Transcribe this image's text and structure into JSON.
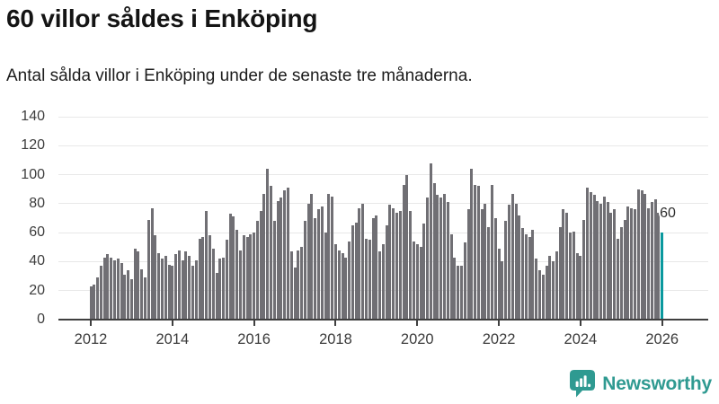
{
  "header": {
    "title": "60 villor såldes i Enköping",
    "subtitle": "Antal sålda villor i Enköping under de senaste tre månaderna."
  },
  "footer": {
    "brand_name": "Newsworthy",
    "brand_color": "#2f9a91",
    "brand_icon": "bar-chart-speech-bubble"
  },
  "chart_data": {
    "type": "bar",
    "title": "60 villor såldes i Enköping",
    "subtitle": "Antal sålda villor i Enköping under de senaste tre månaderna.",
    "x_unit": "month",
    "x_start": "2012-01",
    "x_end": "2026-01",
    "grid": true,
    "legend": "none",
    "ylim": [
      0,
      140
    ],
    "y_ticks": [
      0,
      20,
      40,
      60,
      80,
      100,
      120,
      140
    ],
    "x_tick_labels": [
      "2012",
      "2014",
      "2016",
      "2018",
      "2020",
      "2022",
      "2024",
      "2026"
    ],
    "bar_color": "#706f74",
    "highlight": {
      "index": 168,
      "value": 60,
      "label": "60",
      "color": "#0a999e"
    },
    "values": [
      23,
      24,
      29,
      37,
      43,
      45,
      43,
      41,
      42,
      39,
      31,
      34,
      28,
      49,
      47,
      35,
      29,
      69,
      77,
      58,
      46,
      42,
      44,
      38,
      37,
      45,
      48,
      41,
      47,
      44,
      37,
      41,
      56,
      57,
      75,
      58,
      49,
      32,
      42,
      43,
      55,
      73,
      71,
      62,
      48,
      58,
      57,
      59,
      60,
      68,
      75,
      87,
      104,
      92,
      68,
      82,
      84,
      89,
      91,
      47,
      36,
      48,
      50,
      68,
      80,
      87,
      70,
      76,
      78,
      60,
      87,
      85,
      52,
      48,
      46,
      43,
      54,
      65,
      67,
      77,
      80,
      56,
      55,
      70,
      72,
      47,
      52,
      65,
      79,
      77,
      74,
      75,
      93,
      100,
      75,
      54,
      52,
      50,
      66,
      84,
      108,
      94,
      86,
      84,
      87,
      81,
      59,
      43,
      37,
      37,
      53,
      76,
      104,
      93,
      92,
      76,
      80,
      64,
      93,
      70,
      49,
      40,
      68,
      79,
      87,
      80,
      72,
      63,
      59,
      57,
      62,
      42,
      34,
      31,
      37,
      44,
      40,
      47,
      64,
      76,
      74,
      60,
      61,
      46,
      44,
      69,
      91,
      88,
      86,
      82,
      80,
      85,
      81,
      74,
      76,
      56,
      64,
      69,
      78,
      77,
      76,
      90,
      89,
      87,
      77,
      81,
      83,
      74,
      60
    ]
  }
}
